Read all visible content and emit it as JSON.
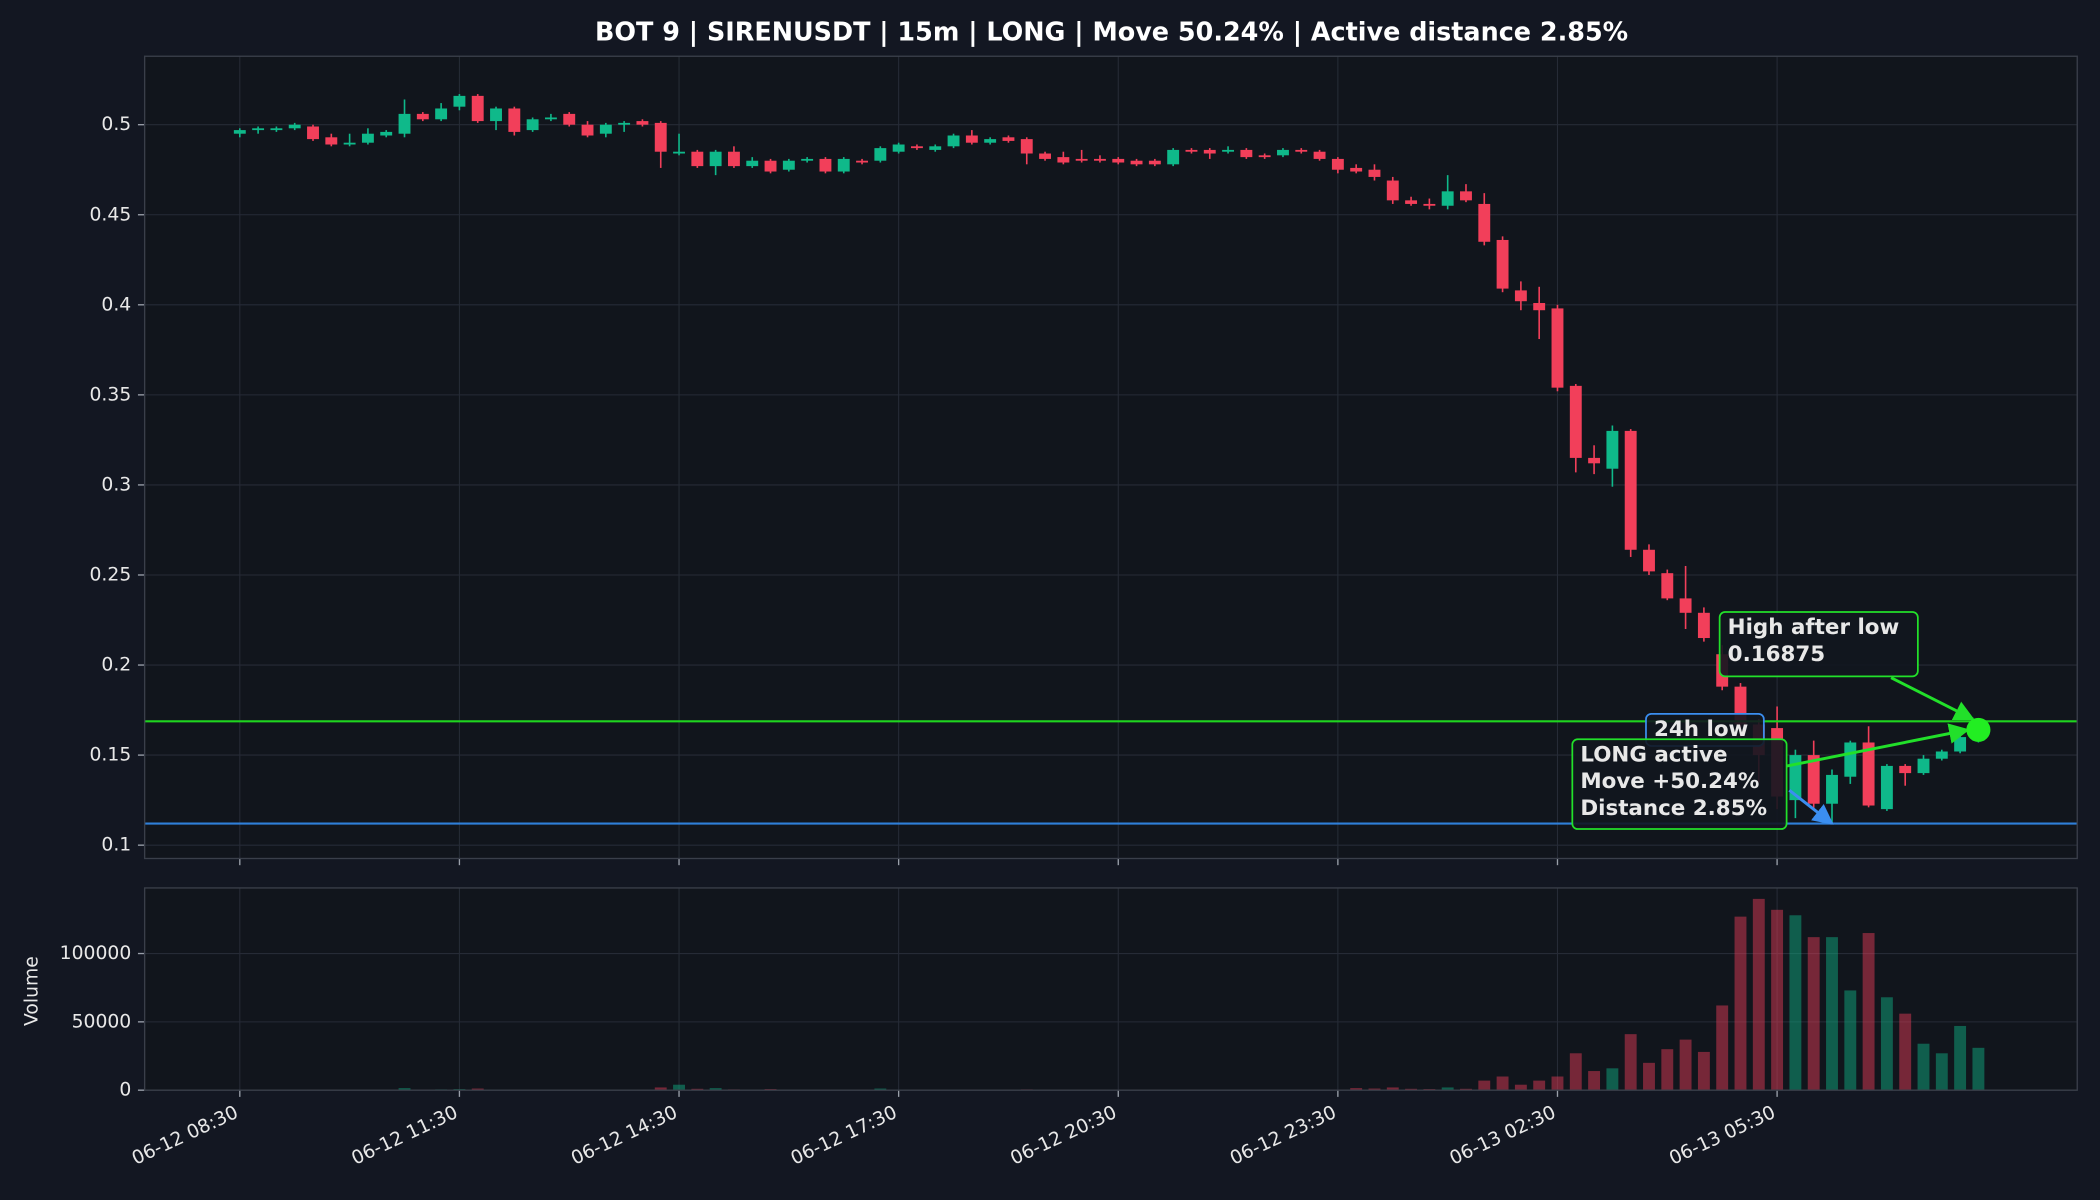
{
  "chart_data": {
    "type": "candlestick",
    "title": "BOT 9 | SIRENUSDT | 15m | LONG | Move 50.24% | Active distance 2.85%",
    "up_color": "#0fb98a",
    "down_color": "#f23f5a",
    "grid": true,
    "x": [
      "06-12 08:30",
      "06-12 08:45",
      "06-12 09:00",
      "06-12 09:15",
      "06-12 09:30",
      "06-12 09:45",
      "06-12 10:00",
      "06-12 10:15",
      "06-12 10:30",
      "06-12 10:45",
      "06-12 11:00",
      "06-12 11:15",
      "06-12 11:30",
      "06-12 11:45",
      "06-12 12:00",
      "06-12 12:15",
      "06-12 12:30",
      "06-12 12:45",
      "06-12 13:00",
      "06-12 13:15",
      "06-12 13:30",
      "06-12 13:45",
      "06-12 14:00",
      "06-12 14:15",
      "06-12 14:30",
      "06-12 14:45",
      "06-12 15:00",
      "06-12 15:15",
      "06-12 15:30",
      "06-12 15:45",
      "06-12 16:00",
      "06-12 16:15",
      "06-12 16:30",
      "06-12 16:45",
      "06-12 17:00",
      "06-12 17:15",
      "06-12 17:30",
      "06-12 17:45",
      "06-12 18:00",
      "06-12 18:15",
      "06-12 18:30",
      "06-12 18:45",
      "06-12 19:00",
      "06-12 19:15",
      "06-12 19:30",
      "06-12 19:45",
      "06-12 20:00",
      "06-12 20:15",
      "06-12 20:30",
      "06-12 20:45",
      "06-12 21:00",
      "06-12 21:15",
      "06-12 21:30",
      "06-12 21:45",
      "06-12 22:00",
      "06-12 22:15",
      "06-12 22:30",
      "06-12 22:45",
      "06-12 23:00",
      "06-12 23:15",
      "06-12 23:30",
      "06-12 23:45",
      "06-13 00:00",
      "06-13 00:15",
      "06-13 00:30",
      "06-13 00:45",
      "06-13 01:00",
      "06-13 01:15",
      "06-13 01:30",
      "06-13 01:45",
      "06-13 02:00",
      "06-13 02:15",
      "06-13 02:30",
      "06-13 02:45",
      "06-13 03:00",
      "06-13 03:15",
      "06-13 03:30",
      "06-13 03:45",
      "06-13 04:00",
      "06-13 04:15",
      "06-13 04:30",
      "06-13 04:45",
      "06-13 05:00",
      "06-13 05:15",
      "06-13 05:30",
      "06-13 05:45",
      "06-13 06:00",
      "06-13 06:15",
      "06-13 06:30",
      "06-13 06:45",
      "06-13 07:00",
      "06-13 07:15",
      "06-13 07:30",
      "06-13 07:45",
      "06-13 08:00",
      "06-13 08:15"
    ],
    "open": [
      0.495,
      0.497,
      0.497,
      0.498,
      0.499,
      0.493,
      0.489,
      0.49,
      0.494,
      0.495,
      0.506,
      0.503,
      0.51,
      0.516,
      0.502,
      0.509,
      0.497,
      0.503,
      0.506,
      0.5,
      0.495,
      0.5,
      0.502,
      0.501,
      0.484,
      0.485,
      0.477,
      0.485,
      0.477,
      0.48,
      0.475,
      0.48,
      0.481,
      0.474,
      0.48,
      0.48,
      0.485,
      0.488,
      0.486,
      0.488,
      0.494,
      0.49,
      0.493,
      0.492,
      0.484,
      0.482,
      0.481,
      0.481,
      0.481,
      0.48,
      0.48,
      0.478,
      0.486,
      0.486,
      0.485,
      0.486,
      0.483,
      0.483,
      0.486,
      0.485,
      0.481,
      0.476,
      0.475,
      0.469,
      0.458,
      0.456,
      0.455,
      0.463,
      0.456,
      0.436,
      0.408,
      0.401,
      0.398,
      0.355,
      0.315,
      0.309,
      0.33,
      0.264,
      0.251,
      0.237,
      0.229,
      0.206,
      0.188,
      0.167,
      0.165,
      0.125,
      0.15,
      0.123,
      0.138,
      0.157,
      0.12,
      0.144,
      0.14,
      0.148,
      0.152,
      0.158
    ],
    "high": [
      0.498,
      0.499,
      0.499,
      0.501,
      0.5,
      0.495,
      0.495,
      0.498,
      0.497,
      0.514,
      0.507,
      0.512,
      0.517,
      0.517,
      0.51,
      0.51,
      0.504,
      0.506,
      0.507,
      0.502,
      0.501,
      0.502,
      0.503,
      0.502,
      0.495,
      0.486,
      0.486,
      0.488,
      0.482,
      0.481,
      0.481,
      0.482,
      0.482,
      0.482,
      0.481,
      0.488,
      0.49,
      0.489,
      0.489,
      0.495,
      0.497,
      0.493,
      0.494,
      0.493,
      0.485,
      0.485,
      0.486,
      0.483,
      0.482,
      0.481,
      0.481,
      0.487,
      0.487,
      0.487,
      0.488,
      0.487,
      0.484,
      0.487,
      0.487,
      0.486,
      0.482,
      0.478,
      0.478,
      0.471,
      0.46,
      0.459,
      0.472,
      0.467,
      0.462,
      0.438,
      0.413,
      0.41,
      0.4,
      0.356,
      0.322,
      0.333,
      0.331,
      0.267,
      0.253,
      0.255,
      0.232,
      0.211,
      0.19,
      0.17,
      0.177,
      0.153,
      0.158,
      0.142,
      0.158,
      0.166,
      0.145,
      0.145,
      0.15,
      0.153,
      0.164,
      0.16875
    ],
    "low": [
      0.493,
      0.495,
      0.496,
      0.497,
      0.491,
      0.488,
      0.488,
      0.489,
      0.493,
      0.493,
      0.502,
      0.502,
      0.508,
      0.501,
      0.497,
      0.494,
      0.496,
      0.502,
      0.499,
      0.493,
      0.493,
      0.496,
      0.499,
      0.476,
      0.483,
      0.476,
      0.472,
      0.476,
      0.476,
      0.473,
      0.474,
      0.479,
      0.473,
      0.473,
      0.478,
      0.479,
      0.484,
      0.486,
      0.485,
      0.487,
      0.489,
      0.489,
      0.49,
      0.478,
      0.48,
      0.478,
      0.479,
      0.479,
      0.478,
      0.477,
      0.477,
      0.477,
      0.484,
      0.481,
      0.484,
      0.481,
      0.481,
      0.482,
      0.484,
      0.48,
      0.473,
      0.473,
      0.469,
      0.456,
      0.455,
      0.453,
      0.453,
      0.457,
      0.433,
      0.407,
      0.397,
      0.381,
      0.352,
      0.307,
      0.306,
      0.299,
      0.26,
      0.25,
      0.236,
      0.22,
      0.213,
      0.186,
      0.16,
      0.135,
      0.12,
      0.115,
      0.12,
      0.112,
      0.134,
      0.121,
      0.119,
      0.133,
      0.139,
      0.147,
      0.151,
      0.157
    ],
    "close": [
      0.497,
      0.498,
      0.498,
      0.5,
      0.492,
      0.489,
      0.49,
      0.495,
      0.496,
      0.506,
      0.503,
      0.509,
      0.516,
      0.502,
      0.509,
      0.496,
      0.503,
      0.504,
      0.5,
      0.494,
      0.5,
      0.501,
      0.5,
      0.485,
      0.485,
      0.477,
      0.485,
      0.477,
      0.48,
      0.474,
      0.48,
      0.481,
      0.474,
      0.481,
      0.479,
      0.487,
      0.489,
      0.487,
      0.488,
      0.494,
      0.49,
      0.492,
      0.491,
      0.484,
      0.481,
      0.479,
      0.48,
      0.48,
      0.479,
      0.478,
      0.478,
      0.486,
      0.485,
      0.484,
      0.486,
      0.482,
      0.482,
      0.486,
      0.485,
      0.481,
      0.475,
      0.474,
      0.471,
      0.458,
      0.456,
      0.455,
      0.463,
      0.458,
      0.435,
      0.409,
      0.402,
      0.397,
      0.354,
      0.315,
      0.312,
      0.33,
      0.264,
      0.252,
      0.237,
      0.229,
      0.215,
      0.188,
      0.167,
      0.15,
      0.127,
      0.15,
      0.123,
      0.139,
      0.157,
      0.122,
      0.144,
      0.14,
      0.148,
      0.152,
      0.16,
      0.164
    ],
    "xlim": [
      "06-12 07:12",
      "06-13 09:36"
    ],
    "xticks": [
      "06-12 08:30",
      "06-12 11:30",
      "06-12 14:30",
      "06-12 17:30",
      "06-12 20:30",
      "06-12 23:30",
      "06-13 02:30",
      "06-13 05:30"
    ],
    "ylim": [
      0.0926,
      0.538
    ],
    "yticks": [
      0.1,
      0.15,
      0.2,
      0.25,
      0.3,
      0.35,
      0.4,
      0.45,
      0.5
    ],
    "hlines": [
      {
        "value": 0.16875,
        "color": "#1fd41f"
      },
      {
        "value": 0.112,
        "color": "#2f7fd9"
      }
    ],
    "marker_color": "#22ee22",
    "annotations": [
      {
        "lines": [
          "High after low",
          "0.16875"
        ],
        "color": "#22e02a"
      },
      {
        "lines": [
          "24h low"
        ],
        "color": "#3b8ef0"
      },
      {
        "lines": [
          "LONG active",
          "Move +50.24%",
          "Distance 2.85%"
        ],
        "color": "#22e02a"
      }
    ],
    "volume": {
      "ylabel": "Volume",
      "ylim": [
        0,
        148000
      ],
      "yticks": [
        0,
        50000,
        100000
      ],
      "values": [
        300,
        300,
        300,
        300,
        400,
        300,
        300,
        300,
        400,
        1500,
        500,
        600,
        800,
        1200,
        500,
        400,
        300,
        300,
        400,
        300,
        300,
        300,
        400,
        2000,
        4000,
        1000,
        1500,
        600,
        400,
        800,
        400,
        300,
        500,
        400,
        300,
        1200,
        500,
        300,
        300,
        500,
        500,
        300,
        300,
        600,
        400,
        400,
        300,
        300,
        300,
        300,
        300,
        500,
        300,
        300,
        300,
        300,
        300,
        300,
        300,
        300,
        500,
        1500,
        1200,
        2000,
        1000,
        800,
        2000,
        1000,
        7000,
        10000,
        4000,
        7000,
        10000,
        27000,
        14000,
        16000,
        41000,
        20000,
        30000,
        37000,
        28000,
        62000,
        127000,
        140000,
        132000,
        128000,
        112000,
        112000,
        73000,
        115000,
        68000,
        56000,
        34000,
        27000,
        47000,
        31000
      ]
    }
  }
}
